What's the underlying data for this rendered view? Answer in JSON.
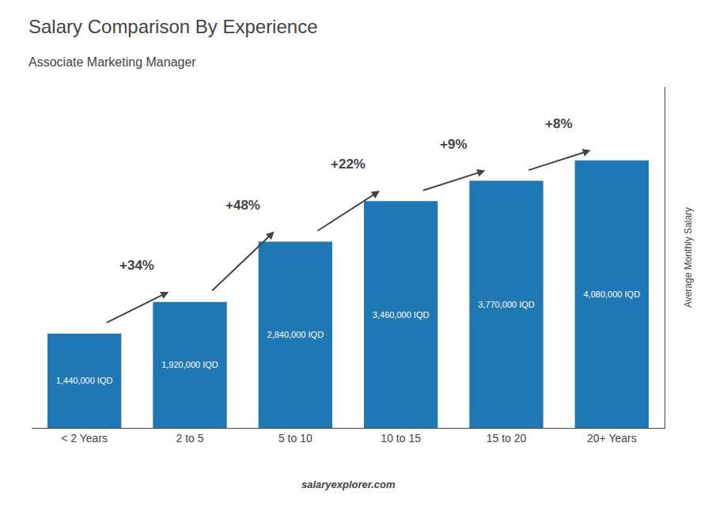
{
  "chart_data": {
    "type": "bar",
    "title": "Salary Comparison By Experience",
    "subtitle": "Associate Marketing Manager",
    "categories": [
      "< 2 Years",
      "2 to 5",
      "5 to 10",
      "10 to 15",
      "15 to 20",
      "20+ Years"
    ],
    "values": [
      1440000,
      1920000,
      2840000,
      3460000,
      3770000,
      4080000
    ],
    "value_labels": [
      "1,440,000 IQD",
      "1,920,000 IQD",
      "2,840,000 IQD",
      "3,460,000 IQD",
      "3,770,000 IQD",
      "4,080,000 IQD"
    ],
    "data_labels": true,
    "annotations": [
      "+34%",
      "+48%",
      "+22%",
      "+9%",
      "+8%"
    ],
    "ylabel": "Average Monthly Salary",
    "footer": "salaryexplorer.com",
    "ylim": [
      0,
      5200000
    ],
    "tick_labels": "x",
    "grid": false
  }
}
